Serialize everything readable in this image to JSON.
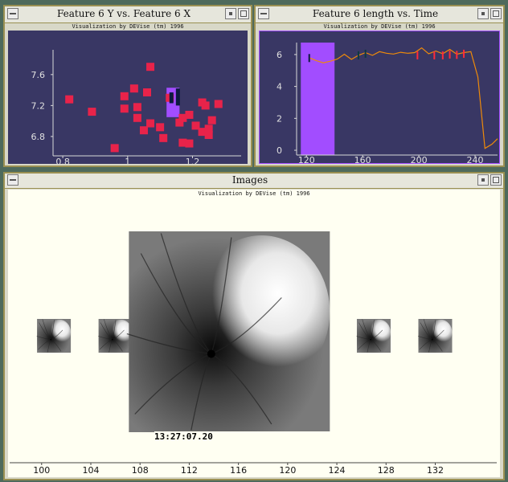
{
  "windows": {
    "scatter": {
      "title": "Feature 6 Y vs. Feature 6 X",
      "subtitle": "Visualization by DEVise (tm) 1996"
    },
    "line": {
      "title": "Feature 6 length vs. Time",
      "subtitle": "Visualization by DEVise (tm) 1996"
    },
    "images": {
      "title": "Images",
      "subtitle": "Visualization by DEVise (tm) 1996",
      "timestamp": "13:27:07.20"
    }
  },
  "colors": {
    "plot_bg": "#393764",
    "scatter_points": "#e8234a",
    "highlight": "#a24dff",
    "line": "#ee8a0a",
    "image_bg": "#fffff2",
    "frame": "#9a9052"
  },
  "chart_data": [
    {
      "type": "scatter",
      "x_ticks": [
        "0.8",
        "1",
        "1.2"
      ],
      "y_ticks": [
        "6.8",
        "7.2",
        "7.6"
      ],
      "xlim": [
        0.77,
        1.35
      ],
      "ylim": [
        6.55,
        7.92
      ],
      "points": [
        [
          0.82,
          7.28
        ],
        [
          0.89,
          7.12
        ],
        [
          0.96,
          6.65
        ],
        [
          0.99,
          7.32
        ],
        [
          0.99,
          7.16
        ],
        [
          1.02,
          7.42
        ],
        [
          1.03,
          7.18
        ],
        [
          1.03,
          7.04
        ],
        [
          1.05,
          6.88
        ],
        [
          1.06,
          7.37
        ],
        [
          1.07,
          6.97
        ],
        [
          1.07,
          7.7
        ],
        [
          1.1,
          6.92
        ],
        [
          1.11,
          6.78
        ],
        [
          1.13,
          7.3
        ],
        [
          1.16,
          6.98
        ],
        [
          1.17,
          7.04
        ],
        [
          1.17,
          6.72
        ],
        [
          1.19,
          7.08
        ],
        [
          1.19,
          6.71
        ],
        [
          1.21,
          6.94
        ],
        [
          1.23,
          7.24
        ],
        [
          1.24,
          7.2
        ],
        [
          1.23,
          6.86
        ],
        [
          1.25,
          6.9
        ],
        [
          1.25,
          6.82
        ],
        [
          1.26,
          7.01
        ],
        [
          1.28,
          7.22
        ]
      ],
      "highlight": {
        "x": [
          1.12,
          1.16
        ],
        "y": [
          7.05,
          7.43
        ]
      },
      "bars": [
        [
          1.135,
          7.23,
          7.37
        ],
        [
          1.155,
          7.2,
          7.42
        ]
      ]
    },
    {
      "type": "line",
      "x_ticks": [
        "120",
        "160",
        "200",
        "240"
      ],
      "y_ticks": [
        "0",
        "2",
        "4",
        "6"
      ],
      "xlim": [
        113,
        256
      ],
      "ylim": [
        -0.3,
        6.75
      ],
      "highlight": {
        "x": [
          116,
          140
        ]
      },
      "x": [
        122,
        127,
        132,
        137,
        142,
        147,
        152,
        157,
        162,
        167,
        172,
        177,
        182,
        187,
        192,
        197,
        202,
        207,
        212,
        217,
        222,
        227,
        232,
        237,
        242,
        247,
        252,
        256
      ],
      "y": [
        5.8,
        5.62,
        5.48,
        5.58,
        5.72,
        6.02,
        5.7,
        5.95,
        6.12,
        5.95,
        6.18,
        6.08,
        6.03,
        6.14,
        6.08,
        6.12,
        6.42,
        6.05,
        6.22,
        6.05,
        6.32,
        6.02,
        6.12,
        6.18,
        4.6,
        0.12,
        0.38,
        0.72
      ],
      "markers": [
        {
          "x": 122,
          "y": 5.78,
          "color": "#0d1a40"
        },
        {
          "x": 157,
          "y": 5.95,
          "color": "#0d3a40"
        },
        {
          "x": 162,
          "y": 6.05,
          "color": "#0d3a40"
        },
        {
          "x": 199,
          "y": 5.95,
          "color": "#ff2a3a"
        },
        {
          "x": 211,
          "y": 5.95,
          "color": "#ff2a3a"
        },
        {
          "x": 217,
          "y": 5.95,
          "color": "#ff2a3a"
        },
        {
          "x": 222,
          "y": 6.0,
          "color": "#ff2a3a"
        },
        {
          "x": 227,
          "y": 5.98,
          "color": "#ff2a3a"
        },
        {
          "x": 232,
          "y": 6.05,
          "color": "#ff2a3a"
        }
      ]
    },
    {
      "type": "image-strip",
      "x_ticks": [
        "100",
        "104",
        "108",
        "112",
        "116",
        "120",
        "124",
        "128",
        "132"
      ],
      "xlim": [
        97.4,
        137
      ],
      "thumbnails_at": [
        101,
        106,
        127,
        132
      ],
      "main_at": 115
    }
  ]
}
